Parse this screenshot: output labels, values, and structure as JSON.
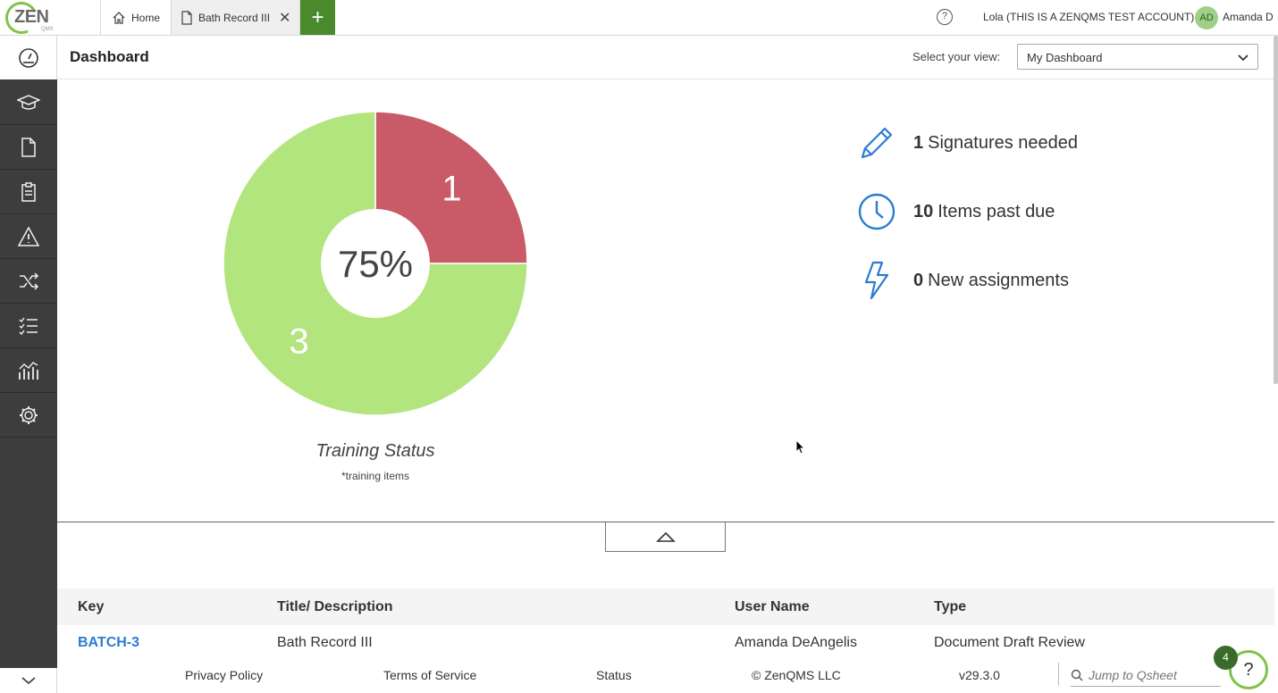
{
  "app": {
    "logo_text": "ZEN",
    "logo_sub": "QMS",
    "tabs": [
      {
        "label": "Home"
      },
      {
        "label": "Bath Record III"
      }
    ],
    "add_tab_label": "+",
    "account_label": "Lola (THIS IS A ZENQMS TEST ACCOUNT)",
    "avatar_initials": "AD",
    "user_name": "Amanda D",
    "help_icon": "?"
  },
  "header": {
    "title": "Dashboard",
    "view_label": "Select your view:",
    "view_value": "My Dashboard"
  },
  "chart_data": {
    "type": "pie",
    "center_label": "75%",
    "slices": [
      {
        "value": 1,
        "color": "#c95a67"
      },
      {
        "value": 3,
        "color": "#b2e57d"
      }
    ],
    "title": "Training Status",
    "subtitle": "*training items"
  },
  "stats": [
    {
      "icon": "pencil-icon",
      "count": "1",
      "label": "Signatures needed"
    },
    {
      "icon": "clock-icon",
      "count": "10",
      "label": "Items past due"
    },
    {
      "icon": "lightning-icon",
      "count": "0",
      "label": "New assignments"
    }
  ],
  "table": {
    "headers": [
      "Key",
      "Title/ Description",
      "User Name",
      "Type"
    ],
    "rows": [
      {
        "key": "BATCH-3",
        "title": "Bath Record III",
        "user": "Amanda DeAngelis",
        "type": "Document Draft Review"
      }
    ]
  },
  "footer": {
    "privacy": "Privacy Policy",
    "terms": "Terms of Service",
    "status": "Status",
    "copyright": "© ZenQMS LLC",
    "version": "v29.3.0",
    "qsheet_placeholder": "Jump to Qsheet"
  },
  "help": {
    "badge_count": "4",
    "fab_label": "?"
  },
  "colors": {
    "accent_green": "#4a8a2c",
    "link_blue": "#2b7bd3",
    "icon_blue": "#2b7bd3",
    "sidebar_bg": "#3d3d3d"
  }
}
